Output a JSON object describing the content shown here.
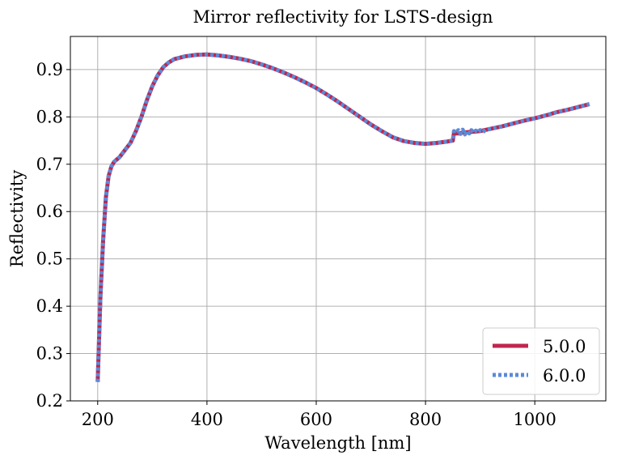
{
  "chart_data": {
    "type": "line",
    "title": "Mirror reflectivity for LSTS-design",
    "xlabel": "Wavelength [nm]",
    "ylabel": "Reflectivity",
    "xlim": [
      150,
      1130
    ],
    "ylim": [
      0.2,
      0.97
    ],
    "xticks": [
      200,
      400,
      600,
      800,
      1000
    ],
    "yticks": [
      0.2,
      0.3,
      0.4,
      0.5,
      0.6,
      0.7,
      0.8,
      0.9
    ],
    "grid": true,
    "legend_position": "lower-right",
    "series": [
      {
        "name": "5.0.0",
        "style": "solid",
        "color": "#c0264e",
        "x": [
          200,
          205,
          210,
          215,
          220,
          225,
          230,
          240,
          250,
          260,
          270,
          280,
          290,
          300,
          310,
          320,
          330,
          340,
          360,
          380,
          400,
          420,
          440,
          460,
          480,
          500,
          520,
          540,
          560,
          580,
          600,
          620,
          640,
          660,
          680,
          700,
          720,
          740,
          760,
          780,
          800,
          820,
          840,
          850,
          852,
          860,
          870,
          880,
          890,
          900,
          920,
          940,
          960,
          980,
          1000,
          1020,
          1040,
          1060,
          1080,
          1100
        ],
        "y": [
          0.24,
          0.42,
          0.54,
          0.63,
          0.675,
          0.695,
          0.705,
          0.715,
          0.73,
          0.745,
          0.77,
          0.8,
          0.835,
          0.865,
          0.888,
          0.905,
          0.915,
          0.922,
          0.928,
          0.931,
          0.932,
          0.93,
          0.927,
          0.923,
          0.918,
          0.911,
          0.903,
          0.894,
          0.884,
          0.873,
          0.861,
          0.847,
          0.832,
          0.816,
          0.8,
          0.784,
          0.77,
          0.757,
          0.749,
          0.745,
          0.743,
          0.745,
          0.748,
          0.75,
          0.765,
          0.765,
          0.767,
          0.768,
          0.769,
          0.77,
          0.775,
          0.78,
          0.786,
          0.792,
          0.797,
          0.803,
          0.81,
          0.815,
          0.821,
          0.827
        ]
      },
      {
        "name": "6.0.0",
        "style": "dotted",
        "color": "#5b8ad8",
        "x": [
          200,
          205,
          210,
          215,
          220,
          225,
          230,
          240,
          250,
          260,
          270,
          280,
          290,
          300,
          310,
          320,
          330,
          340,
          360,
          380,
          400,
          420,
          440,
          460,
          480,
          500,
          520,
          540,
          560,
          580,
          600,
          620,
          640,
          660,
          680,
          700,
          720,
          740,
          760,
          780,
          800,
          820,
          840,
          850,
          852,
          856,
          860,
          864,
          868,
          872,
          876,
          880,
          884,
          888,
          892,
          896,
          900,
          905,
          910,
          920,
          940,
          960,
          980,
          1000,
          1020,
          1040,
          1060,
          1080,
          1100
        ],
        "y": [
          0.24,
          0.42,
          0.54,
          0.63,
          0.675,
          0.695,
          0.705,
          0.715,
          0.73,
          0.745,
          0.77,
          0.8,
          0.835,
          0.865,
          0.888,
          0.905,
          0.915,
          0.922,
          0.928,
          0.931,
          0.932,
          0.93,
          0.927,
          0.923,
          0.918,
          0.911,
          0.903,
          0.894,
          0.884,
          0.873,
          0.861,
          0.847,
          0.832,
          0.816,
          0.8,
          0.784,
          0.77,
          0.757,
          0.749,
          0.745,
          0.743,
          0.745,
          0.748,
          0.75,
          0.77,
          0.766,
          0.772,
          0.764,
          0.773,
          0.763,
          0.771,
          0.765,
          0.772,
          0.766,
          0.771,
          0.767,
          0.772,
          0.768,
          0.773,
          0.775,
          0.78,
          0.786,
          0.792,
          0.797,
          0.803,
          0.81,
          0.815,
          0.821,
          0.827
        ]
      }
    ]
  }
}
